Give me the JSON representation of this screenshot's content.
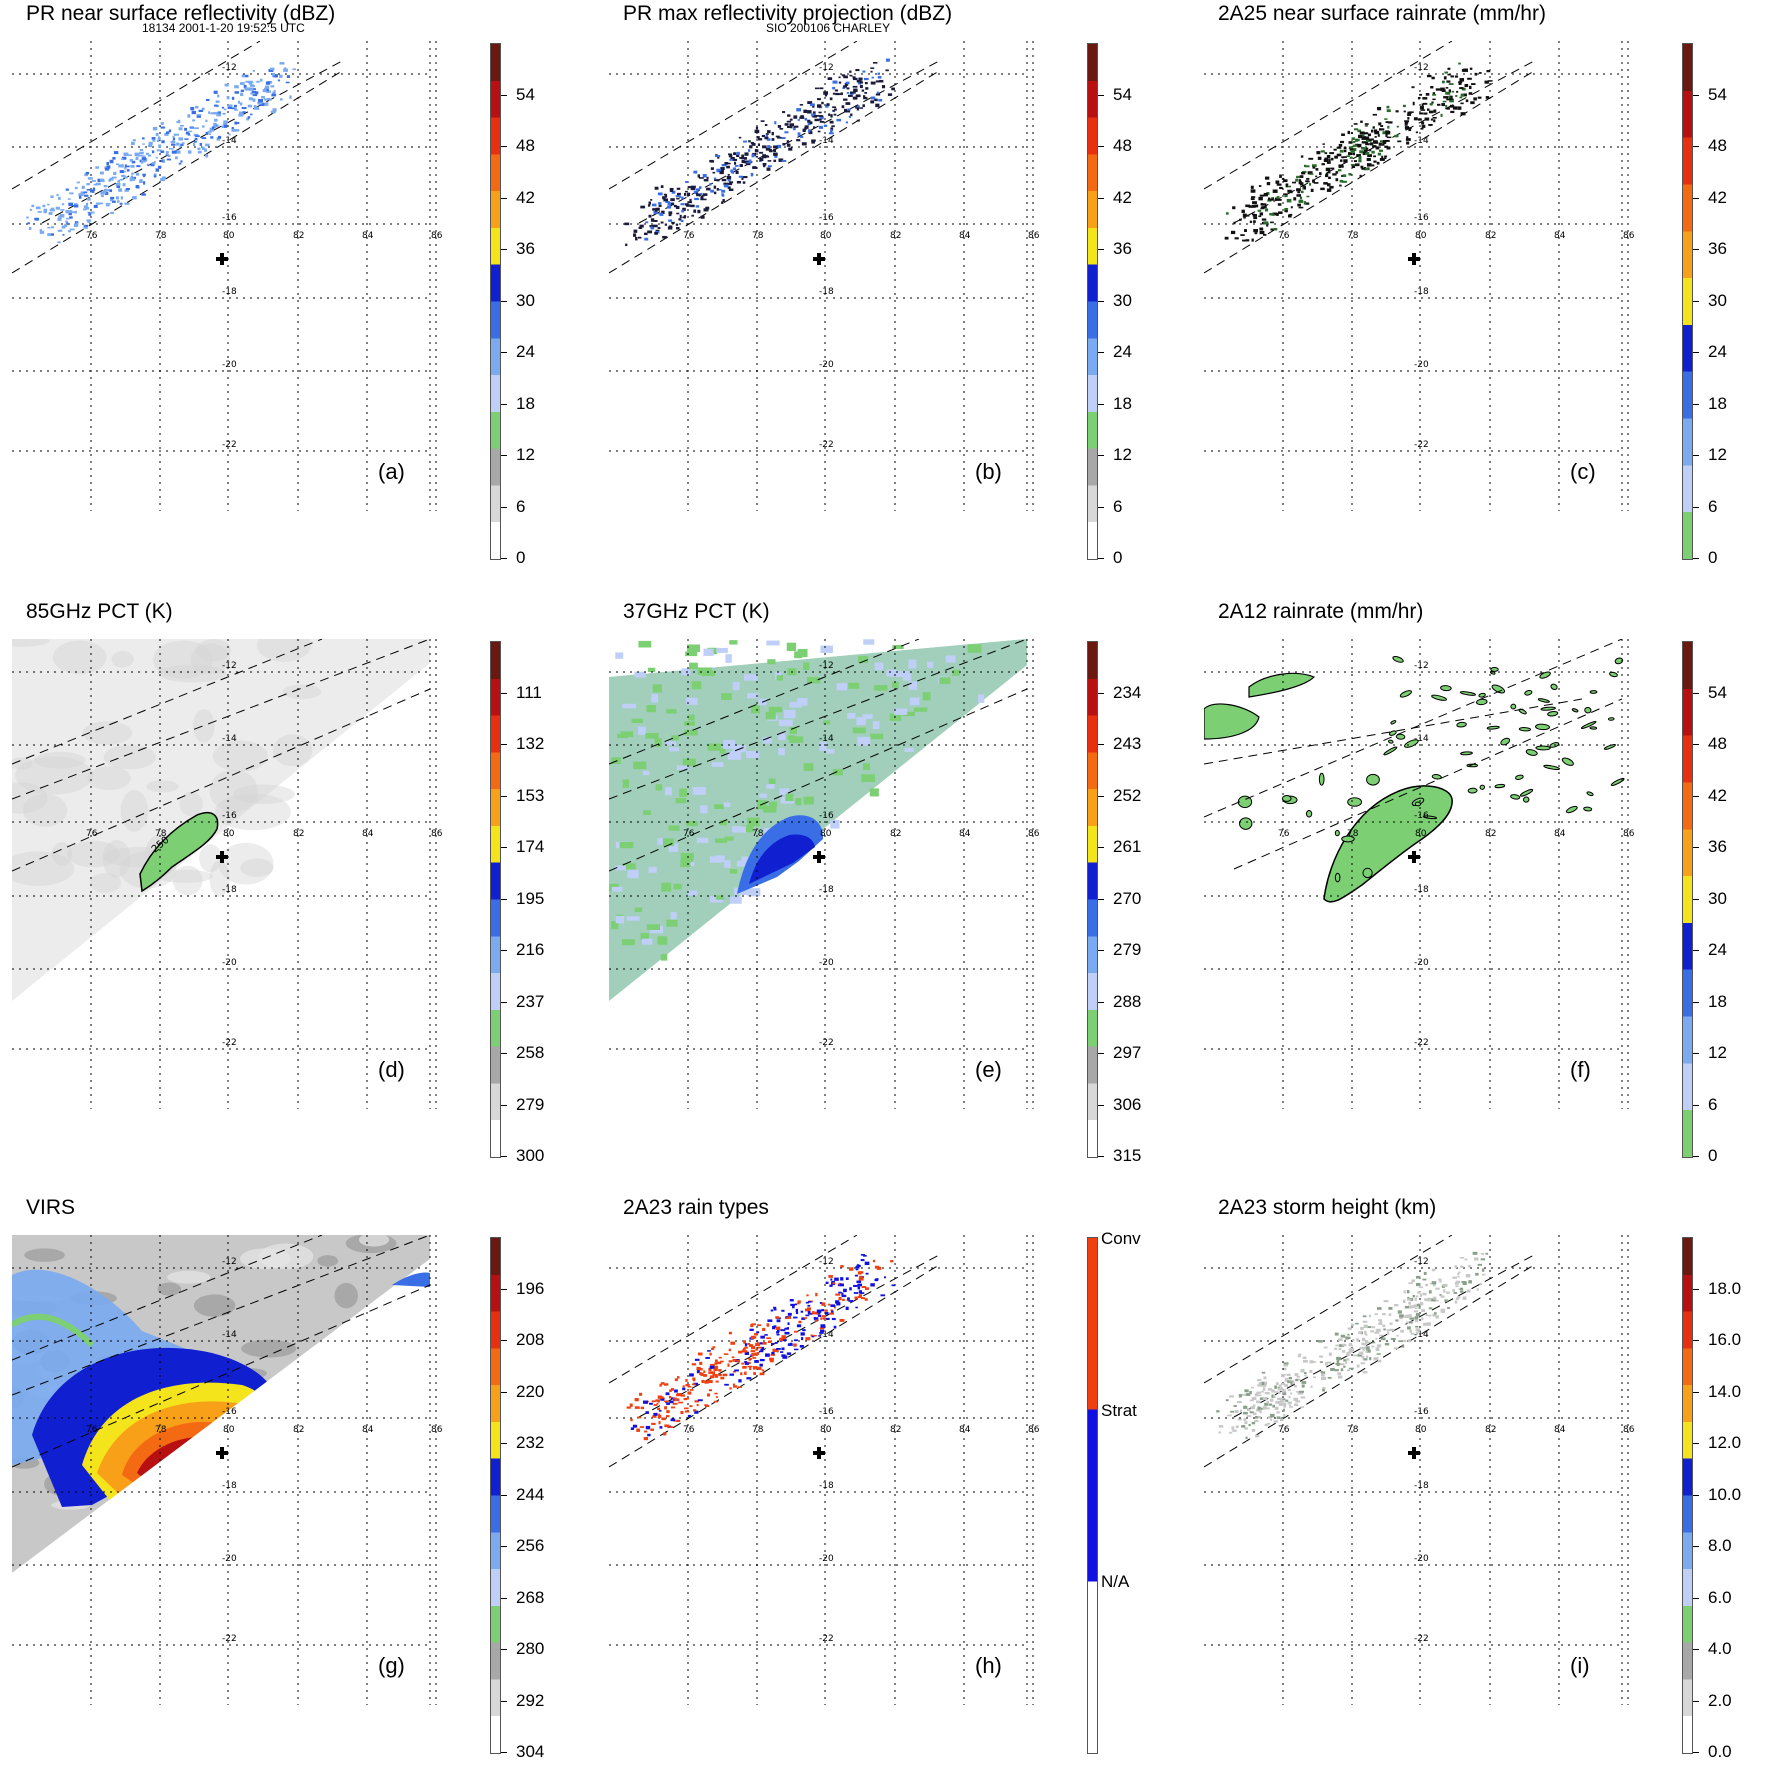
{
  "header": {
    "left": "18134 2001-1-20 19:52:5 UTC",
    "center": "SIO 200106 CHARLEY"
  },
  "map": {
    "lat_labels": [
      "-12",
      "-14",
      "-16",
      "-18",
      "-20",
      "-22"
    ],
    "lon_labels": [
      "76",
      "78",
      "80",
      "82",
      "84",
      "86"
    ]
  },
  "panels": [
    {
      "title": "PR near surface reflectivity (dBZ)",
      "label": "(a)",
      "ticks": [
        "54",
        "48",
        "42",
        "36",
        "30",
        "24",
        "18",
        "12",
        "6",
        "0"
      ],
      "colors": [
        "#ffffff",
        "#d8d8d8",
        "#a8a8a8",
        "#7ccf72",
        "#bfcff8",
        "#7aaaf0",
        "#3a6ee6",
        "#1020d0",
        "#f4e41c",
        "#f8a018",
        "#f46a12",
        "#e83010",
        "#b81010",
        "#6a1810"
      ]
    },
    {
      "title": "PR max reflectivity projection (dBZ)",
      "label": "(b)",
      "ticks": [
        "54",
        "48",
        "42",
        "36",
        "30",
        "24",
        "18",
        "12",
        "6",
        "0"
      ],
      "colors": [
        "#ffffff",
        "#d8d8d8",
        "#a8a8a8",
        "#7ccf72",
        "#bfcff8",
        "#7aaaf0",
        "#3a6ee6",
        "#1020d0",
        "#f4e41c",
        "#f8a018",
        "#f46a12",
        "#e83010",
        "#b81010",
        "#6a1810"
      ]
    },
    {
      "title": "2A25 near surface rainrate (mm/hr)",
      "label": "(c)",
      "ticks": [
        "54",
        "48",
        "42",
        "36",
        "30",
        "24",
        "18",
        "12",
        "6",
        "0"
      ],
      "colors": [
        "#7ccf72",
        "#bfcff8",
        "#7aaaf0",
        "#3a6ee6",
        "#1020d0",
        "#f4e41c",
        "#f8a018",
        "#f46a12",
        "#e83010",
        "#b81010",
        "#6a1810"
      ]
    },
    {
      "title": "85GHz PCT (K)",
      "label": "(d)",
      "ticks": [
        "111",
        "132",
        "153",
        "174",
        "195",
        "216",
        "237",
        "258",
        "279",
        "300"
      ],
      "colors": [
        "#ffffff",
        "#d8d8d8",
        "#a8a8a8",
        "#7ccf72",
        "#bfcff8",
        "#7aaaf0",
        "#3a6ee6",
        "#1020d0",
        "#f4e41c",
        "#f8a018",
        "#f46a12",
        "#e83010",
        "#b81010",
        "#6a1810"
      ]
    },
    {
      "title": "37GHz PCT (K)",
      "label": "(e)",
      "ticks": [
        "234",
        "243",
        "252",
        "261",
        "270",
        "279",
        "288",
        "297",
        "306",
        "315"
      ],
      "colors": [
        "#ffffff",
        "#d8d8d8",
        "#a8a8a8",
        "#7ccf72",
        "#bfcff8",
        "#7aaaf0",
        "#3a6ee6",
        "#1020d0",
        "#f4e41c",
        "#f8a018",
        "#f46a12",
        "#e83010",
        "#b81010",
        "#6a1810"
      ]
    },
    {
      "title": "2A12 rainrate (mm/hr)",
      "label": "(f)",
      "ticks": [
        "54",
        "48",
        "42",
        "36",
        "30",
        "24",
        "18",
        "12",
        "6",
        "0"
      ],
      "colors": [
        "#7ccf72",
        "#bfcff8",
        "#7aaaf0",
        "#3a6ee6",
        "#1020d0",
        "#f4e41c",
        "#f8a018",
        "#f46a12",
        "#e83010",
        "#b81010",
        "#6a1810"
      ]
    },
    {
      "title": "VIRS",
      "label": "(g)",
      "ticks": [
        "196",
        "208",
        "220",
        "232",
        "244",
        "256",
        "268",
        "280",
        "292",
        "304"
      ],
      "colors": [
        "#ffffff",
        "#d8d8d8",
        "#a8a8a8",
        "#7ccf72",
        "#bfcff8",
        "#7aaaf0",
        "#3a6ee6",
        "#1020d0",
        "#f4e41c",
        "#f8a018",
        "#f46a12",
        "#e83010",
        "#b81010",
        "#6a1810"
      ]
    },
    {
      "title": "2A23 rain types",
      "label": "(h)",
      "ticks": [
        "Conv",
        "Strat",
        "N/A"
      ],
      "colors": [
        "#ffffff",
        "#1010e0",
        "#f04010"
      ]
    },
    {
      "title": "2A23 storm height (km)",
      "label": "(i)",
      "ticks": [
        "18.0",
        "16.0",
        "14.0",
        "12.0",
        "10.0",
        "8.0",
        "6.0",
        "4.0",
        "2.0",
        "0.0"
      ],
      "colors": [
        "#ffffff",
        "#d8d8d8",
        "#a8a8a8",
        "#7ccf72",
        "#bfcff8",
        "#7aaaf0",
        "#3a6ee6",
        "#1020d0",
        "#f4e41c",
        "#f8a018",
        "#f46a12",
        "#e83010",
        "#b81010",
        "#6a1810"
      ]
    }
  ]
}
